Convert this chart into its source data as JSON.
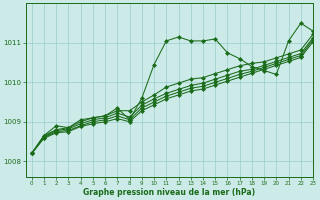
{
  "xlabel": "Graphe pression niveau de la mer (hPa)",
  "xlim": [
    -0.5,
    23
  ],
  "ylim": [
    1007.6,
    1012.0
  ],
  "yticks": [
    1008,
    1009,
    1010,
    1011
  ],
  "xticks": [
    0,
    1,
    2,
    3,
    4,
    5,
    6,
    7,
    8,
    9,
    10,
    11,
    12,
    13,
    14,
    15,
    16,
    17,
    18,
    19,
    20,
    21,
    22,
    23
  ],
  "bg_color": "#cceae7",
  "grid_color": "#99cccc",
  "line_color": "#1a6b1a",
  "lines": [
    [
      1008.2,
      1008.65,
      1008.9,
      1008.85,
      1009.05,
      1009.1,
      1009.15,
      1009.35,
      1009.05,
      1009.6,
      1010.45,
      1011.05,
      1011.15,
      1011.05,
      1011.05,
      1011.1,
      1010.75,
      1010.6,
      1010.4,
      1010.3,
      1010.2,
      1011.05,
      1011.5,
      1011.3
    ],
    [
      1008.2,
      1008.65,
      1008.8,
      1008.85,
      1009.0,
      1009.1,
      1009.15,
      1009.28,
      1009.28,
      1009.5,
      1009.68,
      1009.88,
      1009.98,
      1010.08,
      1010.12,
      1010.22,
      1010.32,
      1010.42,
      1010.48,
      1010.52,
      1010.62,
      1010.72,
      1010.82,
      1011.22
    ],
    [
      1008.2,
      1008.62,
      1008.78,
      1008.82,
      1008.95,
      1009.05,
      1009.1,
      1009.22,
      1009.12,
      1009.42,
      1009.58,
      1009.72,
      1009.82,
      1009.92,
      1009.98,
      1010.08,
      1010.18,
      1010.28,
      1010.33,
      1010.43,
      1010.53,
      1010.63,
      1010.73,
      1011.13
    ],
    [
      1008.2,
      1008.6,
      1008.75,
      1008.78,
      1008.9,
      1009.0,
      1009.05,
      1009.15,
      1009.05,
      1009.35,
      1009.5,
      1009.65,
      1009.75,
      1009.85,
      1009.9,
      1010.0,
      1010.1,
      1010.2,
      1010.28,
      1010.38,
      1010.48,
      1010.58,
      1010.68,
      1011.08
    ],
    [
      1008.2,
      1008.58,
      1008.72,
      1008.75,
      1008.88,
      1008.95,
      1009.0,
      1009.08,
      1009.0,
      1009.28,
      1009.43,
      1009.58,
      1009.68,
      1009.78,
      1009.83,
      1009.93,
      1010.03,
      1010.13,
      1010.23,
      1010.33,
      1010.43,
      1010.53,
      1010.63,
      1011.03
    ]
  ],
  "markers": "D",
  "markersize": 2.0,
  "linewidth": 0.75,
  "figsize": [
    3.2,
    2.0
  ],
  "dpi": 100
}
